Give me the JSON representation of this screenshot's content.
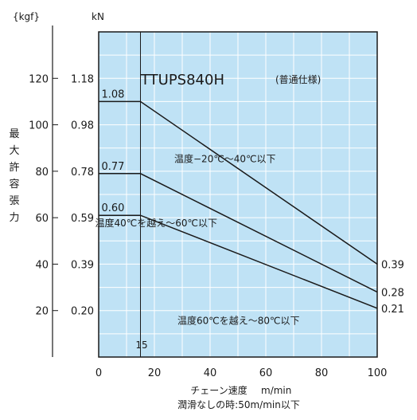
{
  "chart_data": {
    "type": "line",
    "title": "TTUPS840H",
    "title_note": "(普通仕様)",
    "ylabel": "最大許容張力",
    "xlabel": "チェーン速度",
    "x_unit": "m/min",
    "x_note": "潤滑なしの時:50m/min以下",
    "y_unit_kgf": "{kgf}",
    "y_unit_kn": "kN",
    "xlim": [
      0,
      100
    ],
    "ylim_kgf": [
      0,
      140
    ],
    "grid": true,
    "x_ticks": [
      "0",
      "20",
      "40",
      "60",
      "80",
      "100"
    ],
    "y_ticks_kgf": [
      "20",
      "40",
      "60",
      "80",
      "100",
      "120"
    ],
    "y_ticks_kn": [
      "0.20",
      "0.39",
      "0.59",
      "0.78",
      "0.98",
      "1.18"
    ],
    "marker_x_label": "15",
    "marker_x": 15,
    "series": [
      {
        "name": "温度−20℃〜40℃以下",
        "start_label": "1.08",
        "end_label": "0.39",
        "x": [
          0,
          15,
          100
        ],
        "y": [
          110,
          110,
          40
        ]
      },
      {
        "name": "温度40℃を越え〜60℃以下",
        "start_label": "0.77",
        "end_label": "0.28",
        "x": [
          0,
          15,
          100
        ],
        "y": [
          79,
          79,
          28
        ]
      },
      {
        "name": "温度60℃を越え〜80℃以下",
        "start_label": "0.60",
        "end_label": "0.21",
        "x": [
          0,
          15,
          100
        ],
        "y": [
          61,
          61,
          21
        ]
      }
    ]
  }
}
